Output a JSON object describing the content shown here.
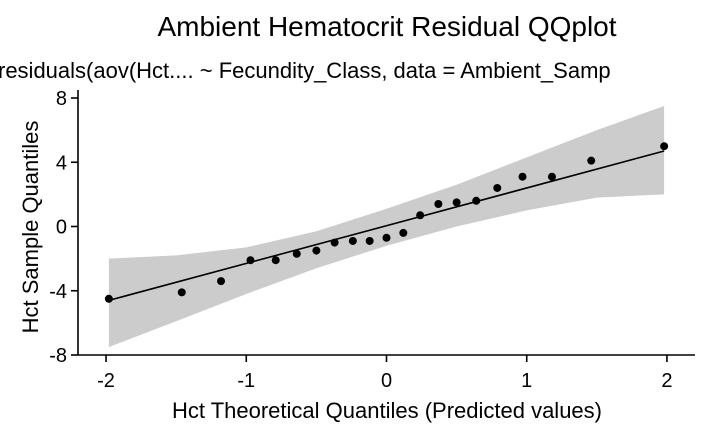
{
  "chart_data": {
    "type": "scatter",
    "title": "Ambient Hematocrit Residual QQplot",
    "subtitle": "residuals(aov(Hct.... ~ Fecundity_Class, data = Ambient_Samp",
    "xlabel": "Hct Theoretical Quantiles (Predicted values)",
    "ylabel": "Hct Sample Quantiles",
    "xlim": [
      -2.2,
      2.2
    ],
    "ylim": [
      -8,
      8
    ],
    "xticks": [
      -2,
      -1,
      0,
      1,
      2
    ],
    "xtick_labels": [
      "-2",
      "-1",
      "0",
      "1",
      "2"
    ],
    "yticks": [
      -8,
      -4,
      0,
      4,
      8
    ],
    "ytick_labels": [
      "-8",
      "-4",
      "0",
      "4",
      "8"
    ],
    "grid": false,
    "series": [
      {
        "type": "scatter",
        "x": [
          -1.98,
          -1.46,
          -1.18,
          -0.97,
          -0.79,
          -0.64,
          -0.5,
          -0.37,
          -0.24,
          -0.12,
          0.0,
          0.12,
          0.24,
          0.37,
          0.5,
          0.64,
          0.79,
          0.97,
          1.18,
          1.46,
          1.98
        ],
        "y": [
          -4.5,
          -4.1,
          -3.4,
          -2.1,
          -2.1,
          -1.7,
          -1.5,
          -1.0,
          -0.9,
          -0.9,
          -0.7,
          -0.4,
          0.7,
          1.4,
          1.5,
          1.6,
          2.4,
          3.1,
          3.1,
          4.1,
          5.0
        ],
        "color": "#000000"
      }
    ],
    "reference_line": {
      "x": [
        -1.98,
        1.98
      ],
      "y": [
        -4.6,
        4.7
      ],
      "color": "#000000"
    },
    "confidence_band": {
      "x": [
        -1.98,
        -1.5,
        -1.0,
        -0.5,
        0.0,
        0.5,
        1.0,
        1.5,
        1.98
      ],
      "lower": [
        -7.5,
        -5.9,
        -4.2,
        -2.6,
        -1.2,
        0.0,
        1.0,
        1.8,
        2.0
      ],
      "upper": [
        -2.0,
        -1.8,
        -1.3,
        -0.3,
        1.1,
        2.6,
        4.3,
        6.0,
        7.5
      ],
      "color": "#cccccc"
    }
  }
}
